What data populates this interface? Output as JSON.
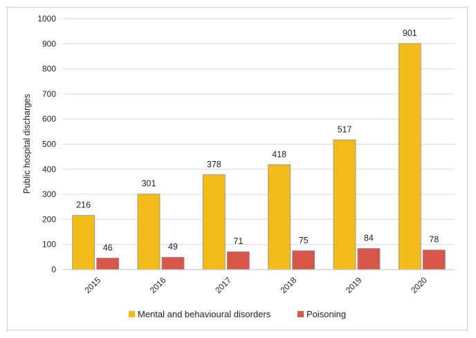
{
  "chart_data": {
    "type": "bar",
    "title": "",
    "xlabel": "",
    "ylabel": "Public hospital discharges",
    "categories": [
      "2015",
      "2016",
      "2017",
      "2018",
      "2019",
      "2020"
    ],
    "series": [
      {
        "name": "Mental and behavioural disorders",
        "color": "#f2bc1c",
        "values": [
          216,
          301,
          378,
          418,
          517,
          901
        ]
      },
      {
        "name": "Poisoning",
        "color": "#d9574a",
        "values": [
          46,
          49,
          71,
          75,
          84,
          78
        ]
      }
    ],
    "ylim": [
      0,
      1000
    ],
    "yticks": [
      0,
      100,
      200,
      300,
      400,
      500,
      600,
      700,
      800,
      900,
      1000
    ],
    "grid": true,
    "legend_position": "bottom"
  }
}
